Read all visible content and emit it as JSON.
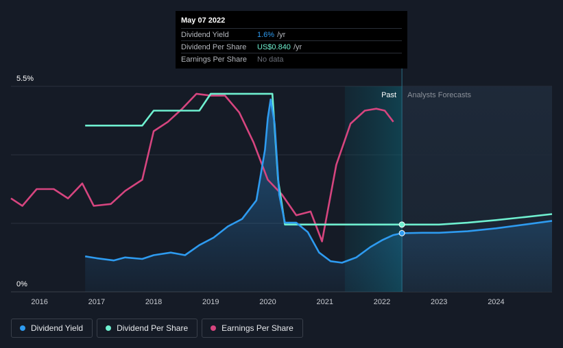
{
  "tooltip": {
    "date": "May 07 2022",
    "rows": [
      {
        "label": "Dividend Yield",
        "value": "1.6%",
        "unit": "/yr"
      },
      {
        "label": "Dividend Per Share",
        "value": "US$0.840",
        "unit": "/yr"
      },
      {
        "label": "Earnings Per Share",
        "value": "No data",
        "unit": ""
      }
    ]
  },
  "legend": {
    "items": [
      {
        "label": "Dividend Yield"
      },
      {
        "label": "Dividend Per Share"
      },
      {
        "label": "Earnings Per Share"
      }
    ]
  },
  "colors": {
    "dividend_yield": "#2e9bf0",
    "dividend_per_share": "#6ff0d0",
    "earnings_per_share": "#d6457f",
    "background": "#151b26",
    "grid": "#2c323d"
  },
  "chart_data": {
    "type": "line",
    "x_ticks": [
      "2016",
      "2017",
      "2018",
      "2019",
      "2020",
      "2021",
      "2022",
      "2023",
      "2024"
    ],
    "y_tick_labels": [
      "5.5%",
      "0%"
    ],
    "xlim": [
      2015.5,
      2024.98
    ],
    "ylim": [
      0,
      5.5
    ],
    "regions": {
      "past_label": "Past",
      "forecast_label": "Analysts Forecasts",
      "highlight_start": 2021.35,
      "divider": 2022.35
    },
    "marker_x": 2022.35,
    "series": [
      {
        "name": "Dividend Yield",
        "unit": "%",
        "points": [
          [
            2016.8,
            0.95
          ],
          [
            2017.0,
            0.9
          ],
          [
            2017.3,
            0.84
          ],
          [
            2017.5,
            0.92
          ],
          [
            2017.8,
            0.88
          ],
          [
            2018.0,
            0.98
          ],
          [
            2018.3,
            1.05
          ],
          [
            2018.55,
            0.98
          ],
          [
            2018.8,
            1.25
          ],
          [
            2019.05,
            1.45
          ],
          [
            2019.3,
            1.75
          ],
          [
            2019.55,
            1.95
          ],
          [
            2019.8,
            2.45
          ],
          [
            2019.95,
            3.8
          ],
          [
            2020.0,
            4.65
          ],
          [
            2020.05,
            5.15
          ],
          [
            2020.12,
            4.5
          ],
          [
            2020.2,
            2.6
          ],
          [
            2020.3,
            1.85
          ],
          [
            2020.5,
            1.85
          ],
          [
            2020.7,
            1.6
          ],
          [
            2020.9,
            1.05
          ],
          [
            2021.1,
            0.82
          ],
          [
            2021.3,
            0.78
          ],
          [
            2021.55,
            0.92
          ],
          [
            2021.8,
            1.2
          ],
          [
            2022.0,
            1.38
          ],
          [
            2022.2,
            1.52
          ],
          [
            2022.35,
            1.57
          ],
          [
            2022.7,
            1.58
          ],
          [
            2023.0,
            1.58
          ],
          [
            2023.5,
            1.62
          ],
          [
            2024.0,
            1.7
          ],
          [
            2024.5,
            1.8
          ],
          [
            2024.98,
            1.9
          ]
        ]
      },
      {
        "name": "Dividend Per Share",
        "unit": "US$/yr",
        "points": [
          [
            2016.8,
            4.45
          ],
          [
            2017.8,
            4.45
          ],
          [
            2018.0,
            4.85
          ],
          [
            2018.8,
            4.85
          ],
          [
            2019.0,
            5.3
          ],
          [
            2020.08,
            5.3
          ],
          [
            2020.18,
            3.0
          ],
          [
            2020.3,
            1.8
          ],
          [
            2022.35,
            1.8
          ],
          [
            2023.0,
            1.8
          ],
          [
            2023.5,
            1.85
          ],
          [
            2024.0,
            1.92
          ],
          [
            2024.5,
            2.0
          ],
          [
            2024.98,
            2.08
          ]
        ]
      },
      {
        "name": "Earnings Per Share",
        "unit": "US$",
        "points": [
          [
            2015.5,
            2.5
          ],
          [
            2015.7,
            2.3
          ],
          [
            2015.95,
            2.75
          ],
          [
            2016.25,
            2.75
          ],
          [
            2016.5,
            2.5
          ],
          [
            2016.75,
            2.9
          ],
          [
            2016.95,
            2.3
          ],
          [
            2017.25,
            2.35
          ],
          [
            2017.5,
            2.7
          ],
          [
            2017.8,
            3.0
          ],
          [
            2018.0,
            4.3
          ],
          [
            2018.25,
            4.55
          ],
          [
            2018.5,
            4.9
          ],
          [
            2018.75,
            5.3
          ],
          [
            2019.0,
            5.25
          ],
          [
            2019.25,
            5.25
          ],
          [
            2019.5,
            4.8
          ],
          [
            2019.75,
            4.0
          ],
          [
            2020.0,
            3.0
          ],
          [
            2020.25,
            2.6
          ],
          [
            2020.5,
            2.05
          ],
          [
            2020.75,
            2.15
          ],
          [
            2020.95,
            1.35
          ],
          [
            2021.2,
            3.4
          ],
          [
            2021.45,
            4.5
          ],
          [
            2021.7,
            4.85
          ],
          [
            2021.9,
            4.9
          ],
          [
            2022.05,
            4.85
          ],
          [
            2022.2,
            4.55
          ]
        ]
      }
    ]
  }
}
